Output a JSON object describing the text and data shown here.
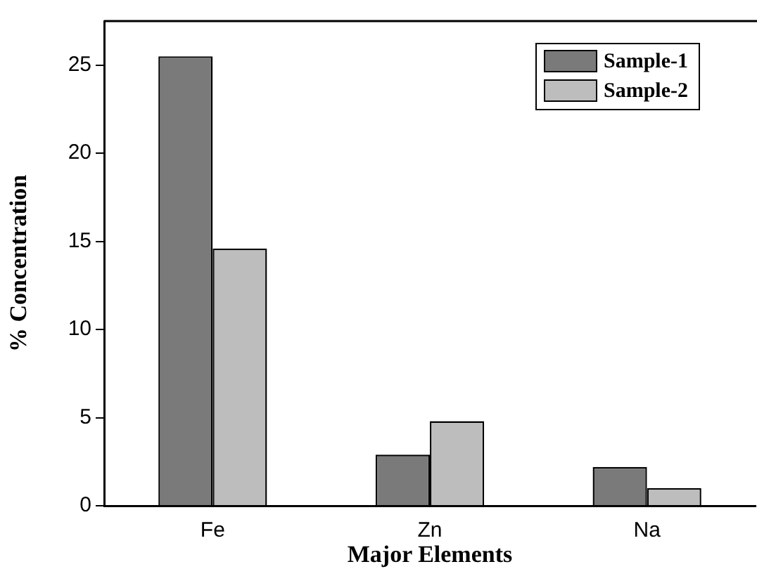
{
  "chart_data": {
    "type": "bar",
    "xlabel": "Major Elements",
    "ylabel": "% Concentration",
    "categories": [
      "Fe",
      "Zn",
      "Na"
    ],
    "series": [
      {
        "name": "Sample-1",
        "color": "#7a7a7a",
        "values": [
          25.5,
          2.9,
          2.2
        ]
      },
      {
        "name": "Sample-2",
        "color": "#bdbdbd",
        "values": [
          14.6,
          4.8,
          1.0
        ]
      }
    ],
    "ylim": [
      0,
      27.5
    ],
    "yticks": [
      0,
      5,
      10,
      15,
      20,
      25
    ],
    "grid": false,
    "legend": "top right"
  }
}
